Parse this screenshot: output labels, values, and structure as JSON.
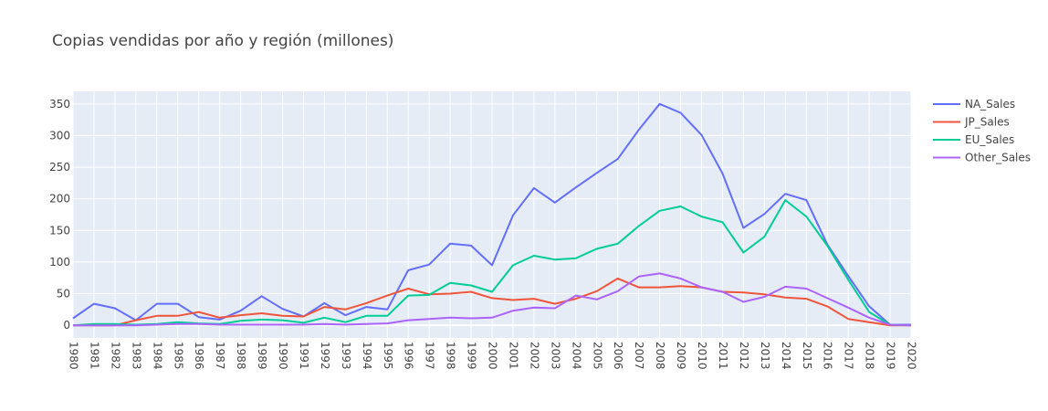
{
  "chart_data": {
    "type": "line",
    "title": "Copias vendidas por año y región (millones)",
    "xlabel": "",
    "ylabel": "",
    "xlim": [
      1980,
      2020
    ],
    "ylim": [
      -20,
      370
    ],
    "yticks": [
      0,
      50,
      100,
      150,
      200,
      250,
      300,
      350
    ],
    "x": [
      1980,
      1981,
      1982,
      1983,
      1984,
      1985,
      1986,
      1987,
      1988,
      1989,
      1990,
      1991,
      1992,
      1993,
      1994,
      1995,
      1996,
      1997,
      1998,
      1999,
      2000,
      2001,
      2002,
      2003,
      2004,
      2005,
      2006,
      2007,
      2008,
      2009,
      2010,
      2011,
      2012,
      2013,
      2014,
      2015,
      2016,
      2017,
      2018,
      2019,
      2020
    ],
    "grid": true,
    "legend_position": "top-right",
    "series": [
      {
        "name": "NA_Sales",
        "color": "#636efa",
        "values": [
          11,
          34,
          27,
          8,
          34,
          34,
          13,
          9,
          23,
          46,
          26,
          14,
          35,
          16,
          29,
          25,
          87,
          96,
          129,
          126,
          95,
          174,
          217,
          194,
          218,
          241,
          263,
          309,
          350,
          336,
          301,
          240,
          154,
          176,
          208,
          198,
          128,
          78,
          30,
          1,
          1
        ]
      },
      {
        "name": "JP_Sales",
        "color": "#ef553b",
        "values": [
          0,
          0,
          0,
          8,
          15,
          15,
          21,
          12,
          16,
          19,
          15,
          14,
          29,
          25,
          35,
          47,
          58,
          49,
          50,
          53,
          43,
          40,
          42,
          34,
          42,
          54,
          74,
          60,
          60,
          62,
          60,
          53,
          52,
          49,
          44,
          42,
          30,
          10,
          5,
          0,
          0
        ]
      },
      {
        "name": "EU_Sales",
        "color": "#00cc96",
        "values": [
          0,
          2,
          2,
          1,
          2,
          5,
          3,
          2,
          7,
          9,
          8,
          4,
          12,
          5,
          15,
          15,
          47,
          48,
          67,
          63,
          53,
          95,
          110,
          104,
          106,
          121,
          129,
          157,
          181,
          188,
          172,
          163,
          115,
          140,
          198,
          172,
          126,
          72,
          21,
          1,
          0
        ]
      },
      {
        "name": "Other_Sales",
        "color": "#ab63fa",
        "values": [
          0,
          0,
          0,
          0,
          1,
          2,
          2,
          1,
          1,
          1,
          1,
          1,
          2,
          1,
          2,
          3,
          8,
          10,
          12,
          11,
          12,
          23,
          28,
          27,
          47,
          41,
          54,
          77,
          82,
          74,
          60,
          53,
          37,
          45,
          61,
          58,
          43,
          28,
          12,
          1,
          0
        ]
      }
    ]
  }
}
